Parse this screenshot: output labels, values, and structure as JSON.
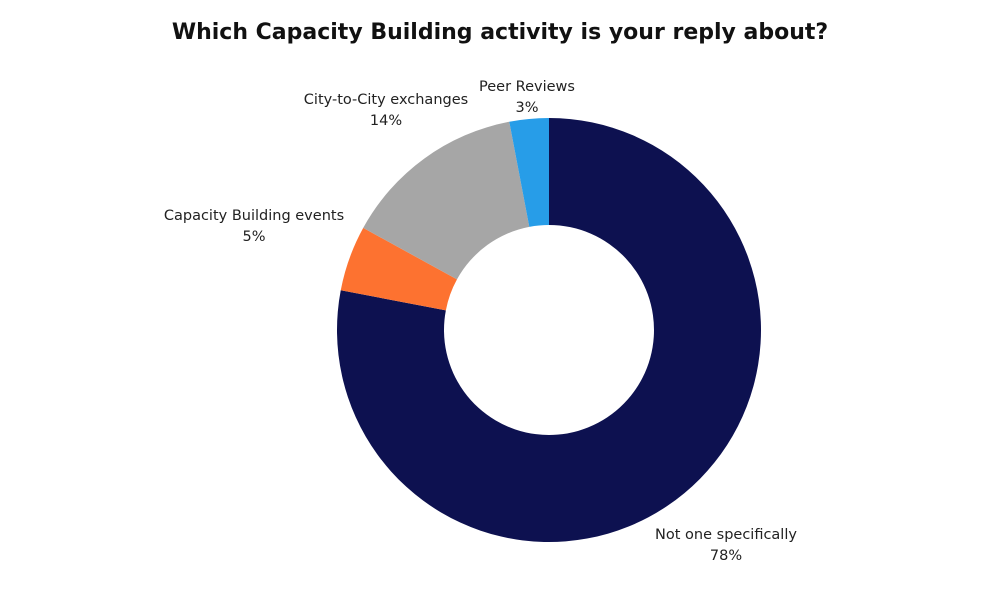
{
  "chart_data": {
    "type": "pie",
    "title": "Which Capacity Building activity is your reply about?",
    "slices": [
      {
        "label": "Not one specifically",
        "value": 78,
        "display": "78%",
        "color": "#0d1150"
      },
      {
        "label": "Capacity Building events",
        "value": 5,
        "display": "5%",
        "color": "#fd7230"
      },
      {
        "label": "City-to-City exchanges",
        "value": 14,
        "display": "14%",
        "color": "#a6a6a6"
      },
      {
        "label": "Peer Reviews",
        "value": 3,
        "display": "3%",
        "color": "#279de8"
      }
    ]
  }
}
